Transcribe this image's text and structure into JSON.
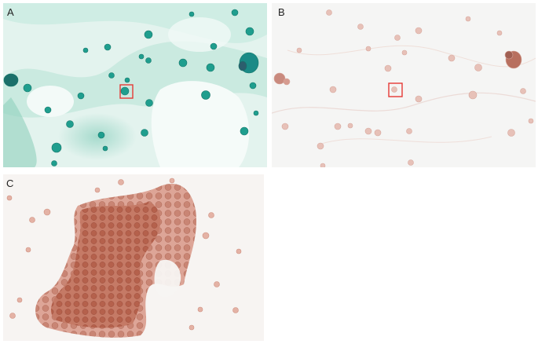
{
  "figure": {
    "panels": [
      {
        "label": "A",
        "stain_color": "#2aa08c",
        "background_color": "#dff1ec"
      },
      {
        "label": "B",
        "stain_color": "#c98a7e",
        "background_color": "#f4f4f3"
      },
      {
        "label": "C",
        "stain_color": "#b5614c",
        "background_color": "#f6f3f1"
      }
    ],
    "highlight_box_color": "#e53935"
  }
}
